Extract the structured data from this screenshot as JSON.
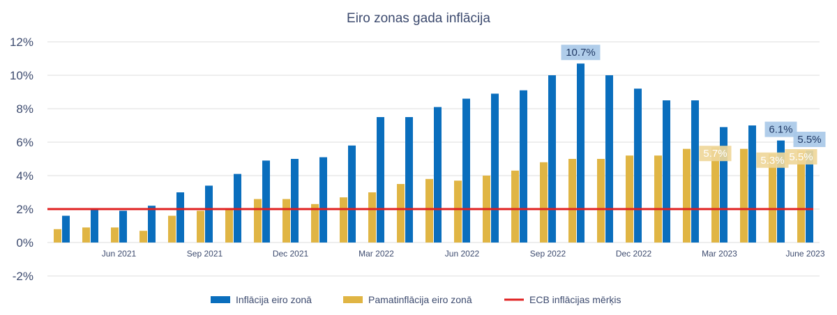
{
  "chart_data": {
    "type": "bar",
    "title": "Eiro zonas gada inflācija",
    "xlabel": "",
    "ylabel": "",
    "ylim": [
      -2,
      12
    ],
    "yticks": [
      -2,
      0,
      2,
      4,
      6,
      8,
      10,
      12
    ],
    "ytick_labels": [
      "-2%",
      "0%",
      "2%",
      "4%",
      "6%",
      "8%",
      "10%",
      "12%"
    ],
    "categories": [
      "Apr 2021",
      "May 2021",
      "Jun 2021",
      "Jul 2021",
      "Aug 2021",
      "Sep 2021",
      "Oct 2021",
      "Nov 2021",
      "Dec 2021",
      "Jan 2022",
      "Feb 2022",
      "Mar 2022",
      "Apr 2022",
      "May 2022",
      "Jun 2022",
      "Jul 2022",
      "Aug 2022",
      "Sep 2022",
      "Oct 2022",
      "Nov 2022",
      "Dec 2022",
      "Jan 2023",
      "Feb 2023",
      "Mar 2023",
      "Apr 2023",
      "May 2023",
      "June 2023"
    ],
    "x_tick_labels": [
      {
        "index": 2,
        "label": "Jun 2021"
      },
      {
        "index": 5,
        "label": "Sep 2021"
      },
      {
        "index": 8,
        "label": "Dec 2021"
      },
      {
        "index": 11,
        "label": "Mar 2022"
      },
      {
        "index": 14,
        "label": "Jun 2022"
      },
      {
        "index": 17,
        "label": "Sep 2022"
      },
      {
        "index": 20,
        "label": "Dec 2022"
      },
      {
        "index": 23,
        "label": "Mar 2023"
      },
      {
        "index": 26,
        "label": "June 2023"
      }
    ],
    "series": [
      {
        "name": "Inflācija eiro zonā",
        "kind": "bar",
        "color": "#0a6ebd",
        "values": [
          1.6,
          2.0,
          1.9,
          2.2,
          3.0,
          3.4,
          4.1,
          4.9,
          5.0,
          5.1,
          5.8,
          7.5,
          7.5,
          8.1,
          8.6,
          8.9,
          9.1,
          10.0,
          10.7,
          10.0,
          9.2,
          8.5,
          8.5,
          6.9,
          7.0,
          6.1,
          5.5
        ]
      },
      {
        "name": "Pamatinflācija eiro zonā",
        "kind": "bar",
        "color": "#e0b544",
        "values": [
          0.8,
          0.9,
          0.9,
          0.7,
          1.6,
          1.9,
          2.0,
          2.6,
          2.6,
          2.3,
          2.7,
          3.0,
          3.5,
          3.8,
          3.7,
          4.0,
          4.3,
          4.8,
          5.0,
          5.0,
          5.2,
          5.2,
          5.6,
          5.7,
          5.6,
          5.3,
          5.5
        ]
      },
      {
        "name": "ECB inflācijas mērķis",
        "kind": "line",
        "color": "#e02020",
        "value": 2
      }
    ],
    "annotations": [
      {
        "series": 0,
        "index": 18,
        "text": "10.7%"
      },
      {
        "series": 0,
        "index": 25,
        "text": "6.1%"
      },
      {
        "series": 0,
        "index": 26,
        "text": "5.5%"
      },
      {
        "series": 1,
        "index": 23,
        "text": "5.7%"
      },
      {
        "series": 1,
        "index": 25,
        "text": "5.3%"
      },
      {
        "series": 1,
        "index": 26,
        "text": "5.5%"
      }
    ],
    "grid": true,
    "legend_position": "bottom-center"
  }
}
